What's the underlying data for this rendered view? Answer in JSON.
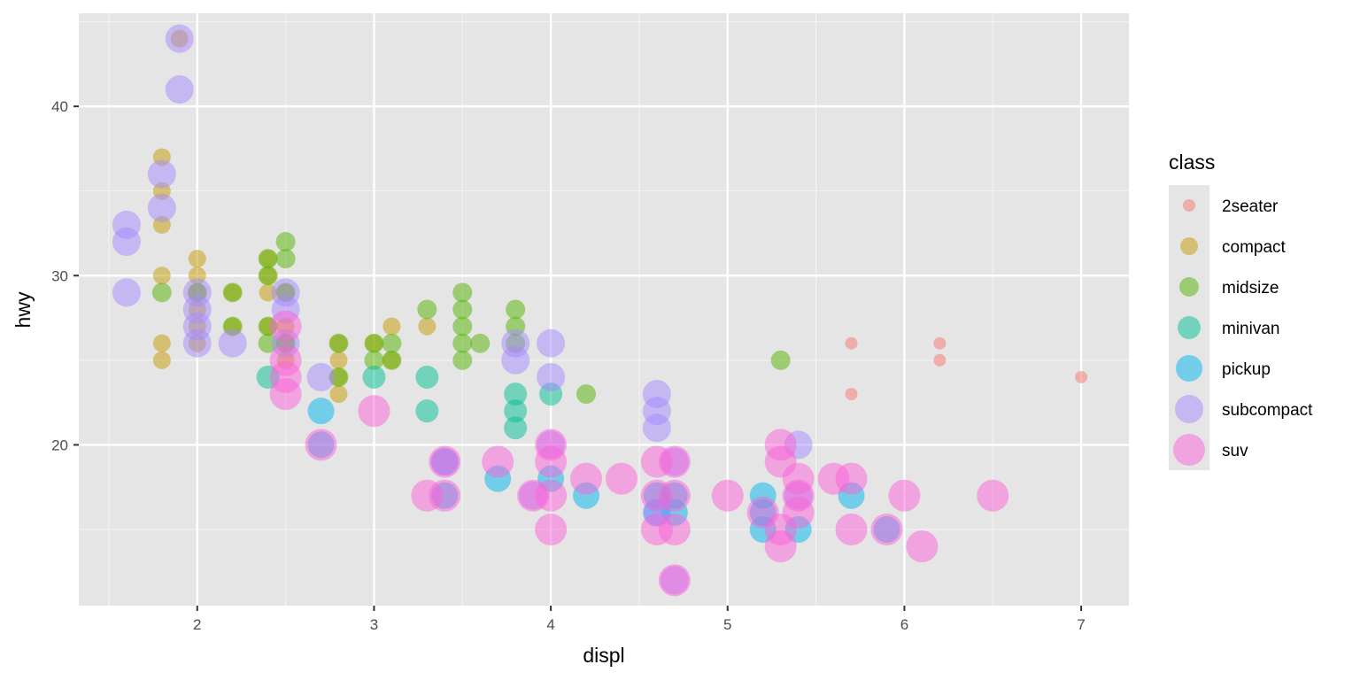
{
  "chart_data": {
    "type": "scatter",
    "xlabel": "displ",
    "ylabel": "hwy",
    "xlim": [
      1.33,
      7.27
    ],
    "ylim": [
      10.5,
      45.5
    ],
    "x_ticks": [
      2,
      3,
      4,
      5,
      6,
      7
    ],
    "y_ticks": [
      20,
      30,
      40
    ],
    "grid": true,
    "background": "#e5e5e5",
    "legend": {
      "title": "class",
      "position": "right",
      "entries": [
        {
          "name": "2seater",
          "color": "#f8766d"
        },
        {
          "name": "compact",
          "color": "#c49a00"
        },
        {
          "name": "midsize",
          "color": "#53b400"
        },
        {
          "name": "minivan",
          "color": "#00c094"
        },
        {
          "name": "pickup",
          "color": "#00b6eb"
        },
        {
          "name": "subcompact",
          "color": "#a58aff"
        },
        {
          "name": "suv",
          "color": "#fb61d7"
        }
      ]
    },
    "series": [
      {
        "name": "2seater",
        "color": "#f8766d",
        "size": 7,
        "points": [
          [
            5.7,
            26
          ],
          [
            5.7,
            23
          ],
          [
            6.2,
            26
          ],
          [
            6.2,
            25
          ],
          [
            7.0,
            24
          ]
        ]
      },
      {
        "name": "compact",
        "color": "#c49a00",
        "size": 10,
        "points": [
          [
            1.8,
            37
          ],
          [
            1.8,
            35
          ],
          [
            1.8,
            33
          ],
          [
            1.8,
            30
          ],
          [
            1.8,
            26
          ],
          [
            1.8,
            25
          ],
          [
            1.9,
            44
          ],
          [
            2.0,
            31
          ],
          [
            2.0,
            30
          ],
          [
            2.0,
            29
          ],
          [
            2.0,
            28
          ],
          [
            2.0,
            27
          ],
          [
            2.0,
            26
          ],
          [
            2.2,
            29
          ],
          [
            2.2,
            27
          ],
          [
            2.4,
            31
          ],
          [
            2.4,
            30
          ],
          [
            2.4,
            29
          ],
          [
            2.4,
            27
          ],
          [
            2.5,
            27
          ],
          [
            2.5,
            26
          ],
          [
            2.5,
            25
          ],
          [
            2.5,
            29
          ],
          [
            2.8,
            26
          ],
          [
            2.8,
            25
          ],
          [
            2.8,
            24
          ],
          [
            2.8,
            23
          ],
          [
            3.0,
            26
          ],
          [
            3.1,
            27
          ],
          [
            3.1,
            25
          ],
          [
            3.3,
            27
          ]
        ]
      },
      {
        "name": "midsize",
        "color": "#53b400",
        "size": 11,
        "points": [
          [
            1.8,
            29
          ],
          [
            2.0,
            29
          ],
          [
            2.2,
            29
          ],
          [
            2.2,
            27
          ],
          [
            2.4,
            31
          ],
          [
            2.4,
            30
          ],
          [
            2.4,
            27
          ],
          [
            2.4,
            26
          ],
          [
            2.5,
            32
          ],
          [
            2.5,
            31
          ],
          [
            2.5,
            29
          ],
          [
            2.5,
            26
          ],
          [
            2.8,
            26
          ],
          [
            2.8,
            24
          ],
          [
            3.0,
            26
          ],
          [
            3.0,
            25
          ],
          [
            3.1,
            26
          ],
          [
            3.1,
            25
          ],
          [
            3.3,
            28
          ],
          [
            3.5,
            29
          ],
          [
            3.5,
            28
          ],
          [
            3.5,
            27
          ],
          [
            3.5,
            26
          ],
          [
            3.5,
            25
          ],
          [
            3.6,
            26
          ],
          [
            3.8,
            28
          ],
          [
            3.8,
            27
          ],
          [
            3.8,
            26
          ],
          [
            4.2,
            23
          ],
          [
            5.3,
            25
          ]
        ]
      },
      {
        "name": "minivan",
        "color": "#00c094",
        "size": 13,
        "points": [
          [
            2.4,
            24
          ],
          [
            3.0,
            24
          ],
          [
            3.3,
            24
          ],
          [
            3.3,
            22
          ],
          [
            3.8,
            23
          ],
          [
            3.8,
            22
          ],
          [
            3.8,
            21
          ],
          [
            4.0,
            23
          ]
        ]
      },
      {
        "name": "pickup",
        "color": "#00b6eb",
        "size": 15,
        "points": [
          [
            2.7,
            22
          ],
          [
            2.7,
            20
          ],
          [
            3.4,
            19
          ],
          [
            3.4,
            17
          ],
          [
            3.7,
            18
          ],
          [
            4.0,
            18
          ],
          [
            4.2,
            17
          ],
          [
            4.6,
            17
          ],
          [
            4.6,
            16
          ],
          [
            4.7,
            17
          ],
          [
            4.7,
            16
          ],
          [
            5.2,
            17
          ],
          [
            5.2,
            16
          ],
          [
            5.2,
            15
          ],
          [
            5.4,
            15
          ],
          [
            5.7,
            17
          ],
          [
            5.9,
            15
          ]
        ]
      },
      {
        "name": "subcompact",
        "color": "#a58aff",
        "size": 16,
        "points": [
          [
            1.6,
            33
          ],
          [
            1.6,
            32
          ],
          [
            1.6,
            29
          ],
          [
            1.8,
            36
          ],
          [
            1.8,
            34
          ],
          [
            1.9,
            44
          ],
          [
            1.9,
            41
          ],
          [
            2.0,
            29
          ],
          [
            2.0,
            28
          ],
          [
            2.0,
            27
          ],
          [
            2.0,
            26
          ],
          [
            2.2,
            26
          ],
          [
            2.5,
            29
          ],
          [
            2.5,
            28
          ],
          [
            2.5,
            26
          ],
          [
            2.7,
            24
          ],
          [
            3.8,
            26
          ],
          [
            3.8,
            25
          ],
          [
            4.0,
            26
          ],
          [
            4.0,
            24
          ],
          [
            4.6,
            23
          ],
          [
            4.6,
            22
          ],
          [
            4.6,
            21
          ],
          [
            5.4,
            20
          ],
          [
            3.4,
            19
          ],
          [
            4.0,
            20
          ],
          [
            4.7,
            19
          ],
          [
            4.6,
            16
          ],
          [
            5.4,
            17
          ],
          [
            3.9,
            17
          ],
          [
            4.7,
            12
          ]
        ]
      },
      {
        "name": "suv",
        "color": "#fb61d7",
        "size": 18,
        "points": [
          [
            2.5,
            27
          ],
          [
            2.5,
            25
          ],
          [
            2.5,
            24
          ],
          [
            2.5,
            23
          ],
          [
            2.7,
            20
          ],
          [
            3.0,
            22
          ],
          [
            3.3,
            17
          ],
          [
            3.4,
            19
          ],
          [
            3.4,
            17
          ],
          [
            3.7,
            19
          ],
          [
            3.9,
            17
          ],
          [
            4.0,
            20
          ],
          [
            4.0,
            19
          ],
          [
            4.0,
            17
          ],
          [
            4.0,
            15
          ],
          [
            4.2,
            18
          ],
          [
            4.4,
            18
          ],
          [
            4.6,
            19
          ],
          [
            4.6,
            17
          ],
          [
            4.6,
            15
          ],
          [
            4.7,
            19
          ],
          [
            4.7,
            17
          ],
          [
            4.7,
            15
          ],
          [
            4.7,
            12
          ],
          [
            5.0,
            17
          ],
          [
            5.2,
            16
          ],
          [
            5.3,
            20
          ],
          [
            5.3,
            19
          ],
          [
            5.3,
            15
          ],
          [
            5.3,
            14
          ],
          [
            5.4,
            18
          ],
          [
            5.4,
            17
          ],
          [
            5.4,
            16
          ],
          [
            5.6,
            18
          ],
          [
            5.7,
            18
          ],
          [
            5.7,
            15
          ],
          [
            5.9,
            15
          ],
          [
            6.0,
            17
          ],
          [
            6.1,
            14
          ],
          [
            6.5,
            17
          ]
        ]
      }
    ]
  }
}
